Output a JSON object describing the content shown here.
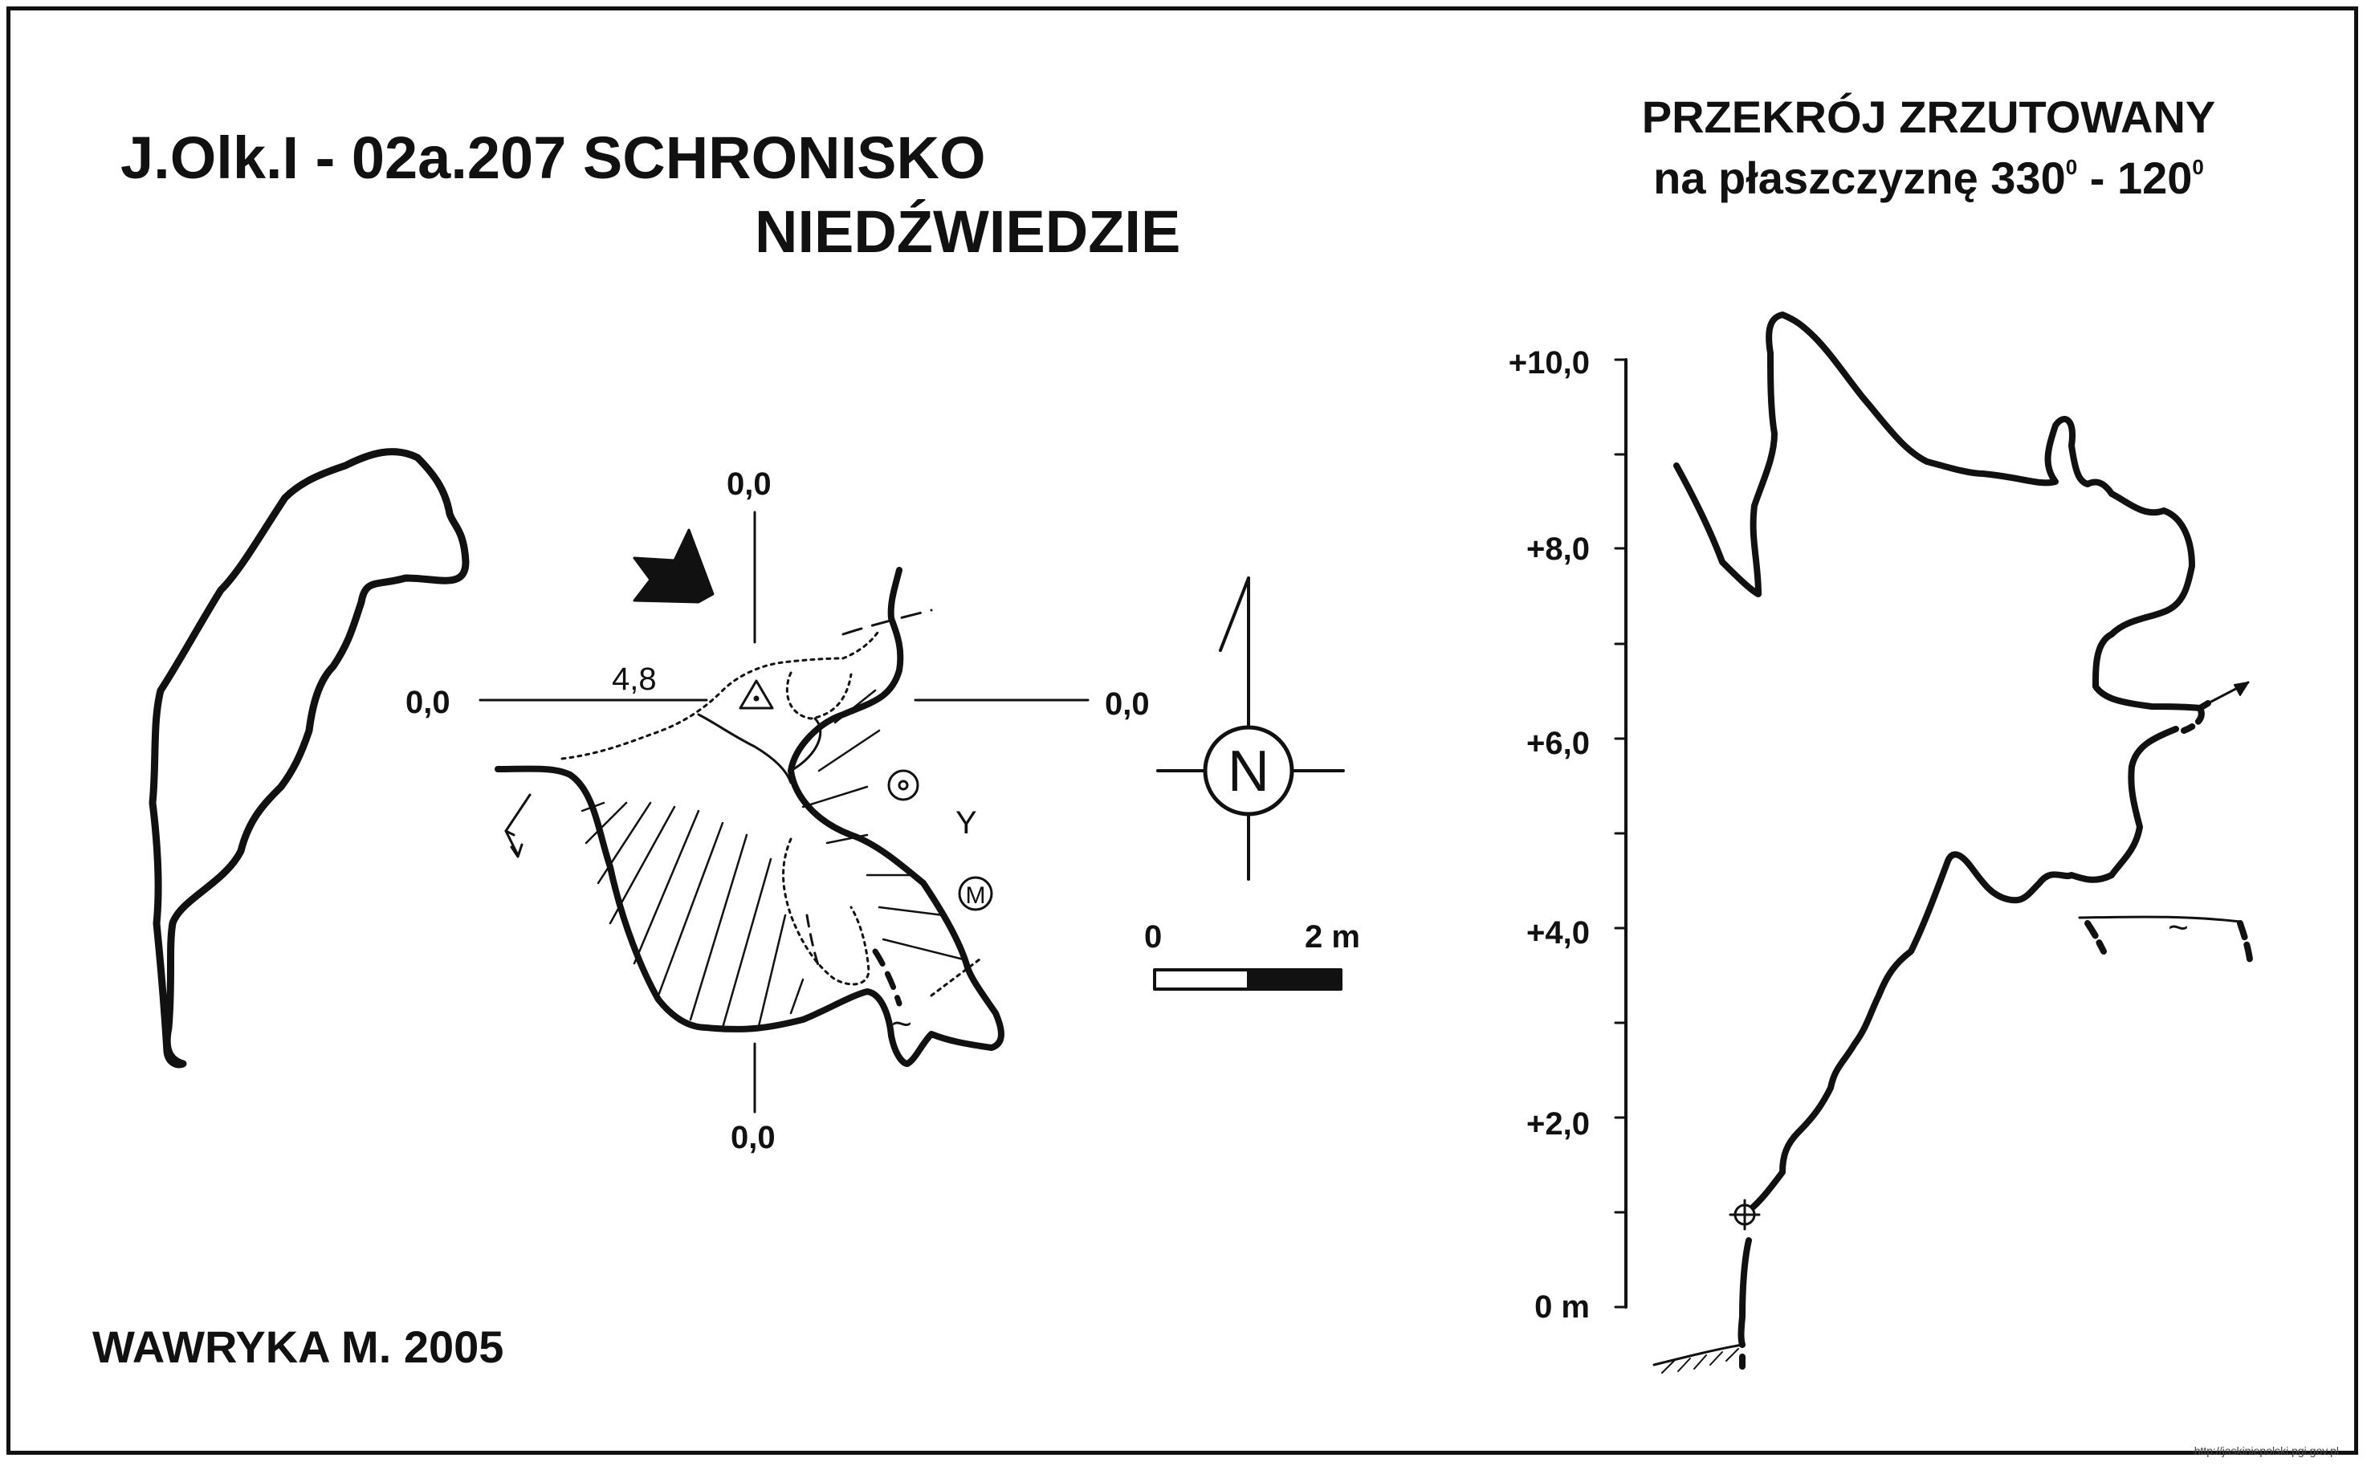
{
  "title": {
    "line1": "J.Olk.I - 02a.207  SCHRONISKO",
    "line2": "NIEDŹWIEDZIE"
  },
  "section": {
    "line1": "PRZEKRÓJ ZRZUTOWANY",
    "line2_prefix": "na płaszczyznę 330",
    "deg1": "0",
    "line2_mid": " - 120",
    "deg2": "0"
  },
  "author": "WAWRYKA M. 2005",
  "plan": {
    "datum_top": "0,0",
    "datum_left": "0,0",
    "datum_right": "0,0",
    "datum_bottom": "0,0",
    "spot_height": "4,8",
    "north_letter": "N",
    "scale_start": "0",
    "scale_end": "2 m"
  },
  "section_axis": {
    "labels": [
      "+10,0",
      "+8,0",
      "+6,0",
      "+4,0",
      "+2,0",
      "0 m"
    ]
  },
  "symbols": {
    "letter_y": "Y",
    "letter_m": "M",
    "tilde": "~"
  },
  "footer_url": "http://jaskiniepolski.pgi.gov.pl",
  "colors": {
    "ink": "#111111",
    "paper": "#ffffff"
  }
}
